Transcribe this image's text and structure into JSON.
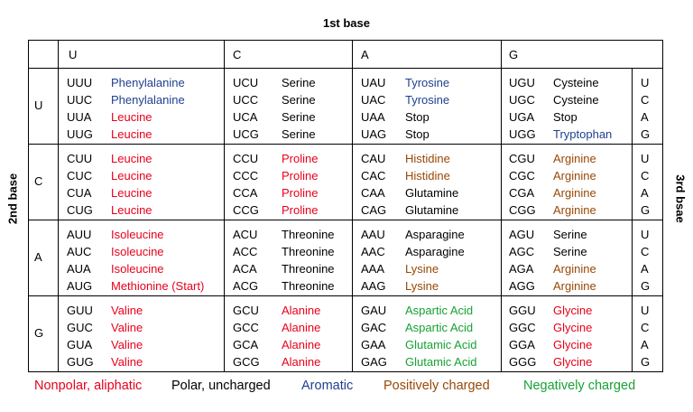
{
  "labels": {
    "first_base": "1st base",
    "second_base": "2nd base",
    "third_base": "3rd bsae"
  },
  "colors": {
    "nonpolar": "#e8001c",
    "polar": "#000000",
    "aromatic": "#1f3f8f",
    "positive": "#984806",
    "negative": "#17a234"
  },
  "header_bases": [
    "U",
    "C",
    "A",
    "G"
  ],
  "row_bases": [
    "U",
    "C",
    "A",
    "G"
  ],
  "third_bases": [
    "U",
    "C",
    "A",
    "G"
  ],
  "rows": [
    [
      [
        [
          "UUU",
          "Phenylalanine",
          "aromatic"
        ],
        [
          "UUC",
          "Phenylalanine",
          "aromatic"
        ],
        [
          "UUA",
          "Leucine",
          "nonpolar"
        ],
        [
          "UUG",
          "Leucine",
          "nonpolar"
        ]
      ],
      [
        [
          "UCU",
          "Serine",
          "polar"
        ],
        [
          "UCC",
          "Serine",
          "polar"
        ],
        [
          "UCA",
          "Serine",
          "polar"
        ],
        [
          "UCG",
          "Serine",
          "polar"
        ]
      ],
      [
        [
          "UAU",
          "Tyrosine",
          "aromatic"
        ],
        [
          "UAC",
          "Tyrosine",
          "aromatic"
        ],
        [
          "UAA",
          "Stop",
          "polar"
        ],
        [
          "UAG",
          "Stop",
          "polar"
        ]
      ],
      [
        [
          "UGU",
          "Cysteine",
          "polar"
        ],
        [
          "UGC",
          "Cysteine",
          "polar"
        ],
        [
          "UGA",
          "Stop",
          "polar"
        ],
        [
          "UGG",
          "Tryptophan",
          "aromatic"
        ]
      ]
    ],
    [
      [
        [
          "CUU",
          "Leucine",
          "nonpolar"
        ],
        [
          "CUC",
          "Leucine",
          "nonpolar"
        ],
        [
          "CUA",
          "Leucine",
          "nonpolar"
        ],
        [
          "CUG",
          "Leucine",
          "nonpolar"
        ]
      ],
      [
        [
          "CCU",
          "Proline",
          "nonpolar"
        ],
        [
          "CCC",
          "Proline",
          "nonpolar"
        ],
        [
          "CCA",
          "Proline",
          "nonpolar"
        ],
        [
          "CCG",
          "Proline",
          "nonpolar"
        ]
      ],
      [
        [
          "CAU",
          "Histidine",
          "positive"
        ],
        [
          "CAC",
          "Histidine",
          "positive"
        ],
        [
          "CAA",
          "Glutamine",
          "polar"
        ],
        [
          "CAG",
          "Glutamine",
          "polar"
        ]
      ],
      [
        [
          "CGU",
          "Arginine",
          "positive"
        ],
        [
          "CGC",
          "Arginine",
          "positive"
        ],
        [
          "CGA",
          "Arginine",
          "positive"
        ],
        [
          "CGG",
          "Arginine",
          "positive"
        ]
      ]
    ],
    [
      [
        [
          "AUU",
          "Isoleucine",
          "nonpolar"
        ],
        [
          "AUC",
          "Isoleucine",
          "nonpolar"
        ],
        [
          "AUA",
          "Isoleucine",
          "nonpolar"
        ],
        [
          "AUG",
          "Methionine (Start)",
          "nonpolar"
        ]
      ],
      [
        [
          "ACU",
          "Threonine",
          "polar"
        ],
        [
          "ACC",
          "Threonine",
          "polar"
        ],
        [
          "ACA",
          "Threonine",
          "polar"
        ],
        [
          "ACG",
          "Threonine",
          "polar"
        ]
      ],
      [
        [
          "AAU",
          "Asparagine",
          "polar"
        ],
        [
          "AAC",
          "Asparagine",
          "polar"
        ],
        [
          "AAA",
          "Lysine",
          "positive"
        ],
        [
          "AAG",
          "Lysine",
          "positive"
        ]
      ],
      [
        [
          "AGU",
          "Serine",
          "polar"
        ],
        [
          "AGC",
          "Serine",
          "polar"
        ],
        [
          "AGA",
          "Arginine",
          "positive"
        ],
        [
          "AGG",
          "Arginine",
          "positive"
        ]
      ]
    ],
    [
      [
        [
          "GUU",
          "Valine",
          "nonpolar"
        ],
        [
          "GUC",
          "Valine",
          "nonpolar"
        ],
        [
          "GUA",
          "Valine",
          "nonpolar"
        ],
        [
          "GUG",
          "Valine",
          "nonpolar"
        ]
      ],
      [
        [
          "GCU",
          "Alanine",
          "nonpolar"
        ],
        [
          "GCC",
          "Alanine",
          "nonpolar"
        ],
        [
          "GCA",
          "Alanine",
          "nonpolar"
        ],
        [
          "GCG",
          "Alanine",
          "nonpolar"
        ]
      ],
      [
        [
          "GAU",
          "Aspartic Acid",
          "negative"
        ],
        [
          "GAC",
          "Aspartic Acid",
          "negative"
        ],
        [
          "GAA",
          "Glutamic Acid",
          "negative"
        ],
        [
          "GAG",
          "Glutamic Acid",
          "negative"
        ]
      ],
      [
        [
          "GGU",
          "Glycine",
          "nonpolar"
        ],
        [
          "GGC",
          "Glycine",
          "nonpolar"
        ],
        [
          "GGA",
          "Glycine",
          "nonpolar"
        ],
        [
          "GGG",
          "Glycine",
          "nonpolar"
        ]
      ]
    ]
  ],
  "legend": [
    {
      "label": "Nonpolar, aliphatic",
      "cls": "nonpolar"
    },
    {
      "label": "Polar, uncharged",
      "cls": "polar"
    },
    {
      "label": "Aromatic",
      "cls": "aromatic"
    },
    {
      "label": "Positively charged",
      "cls": "positive"
    },
    {
      "label": "Negatively charged",
      "cls": "negative"
    }
  ]
}
